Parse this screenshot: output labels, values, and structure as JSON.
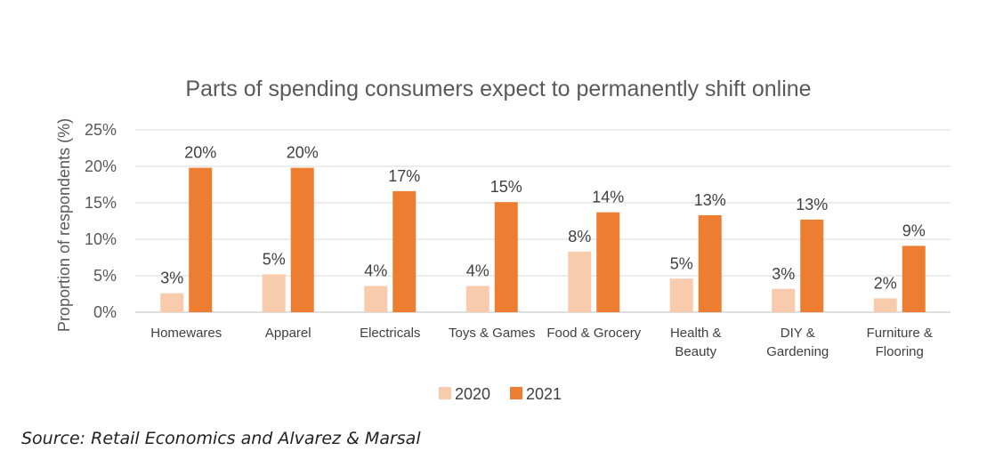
{
  "chart_data": {
    "type": "bar",
    "title": "Parts of spending consumers expect to permanently shift  online",
    "ylabel": "Proportion of respondents (%)",
    "xlabel": "",
    "ylim": [
      0,
      25
    ],
    "yticks": [
      "0%",
      "5%",
      "10%",
      "15%",
      "20%",
      "25%"
    ],
    "grid": true,
    "legend": "bottom",
    "categories": [
      [
        "Homewares"
      ],
      [
        "Apparel"
      ],
      [
        "Electricals"
      ],
      [
        "Toys & Games"
      ],
      [
        "Food & Grocery"
      ],
      [
        "Health &",
        "Beauty"
      ],
      [
        "DIY &",
        "Gardening"
      ],
      [
        "Furniture &",
        "Flooring"
      ]
    ],
    "series": [
      {
        "name": "2020",
        "color": "#F8CBAD",
        "values": [
          2.6,
          5.2,
          3.6,
          3.6,
          8.3,
          4.6,
          3.2,
          1.9
        ],
        "labels": [
          "3%",
          "5%",
          "4%",
          "4%",
          "8%",
          "5%",
          "3%",
          "2%"
        ]
      },
      {
        "name": "2021",
        "color": "#ED7D31",
        "values": [
          19.8,
          19.8,
          16.6,
          15.1,
          13.7,
          13.3,
          12.7,
          9.1
        ],
        "labels": [
          "20%",
          "20%",
          "17%",
          "15%",
          "14%",
          "13%",
          "13%",
          "9%"
        ]
      }
    ]
  },
  "source": "Source: Retail Economics and Alvarez & Marsal"
}
